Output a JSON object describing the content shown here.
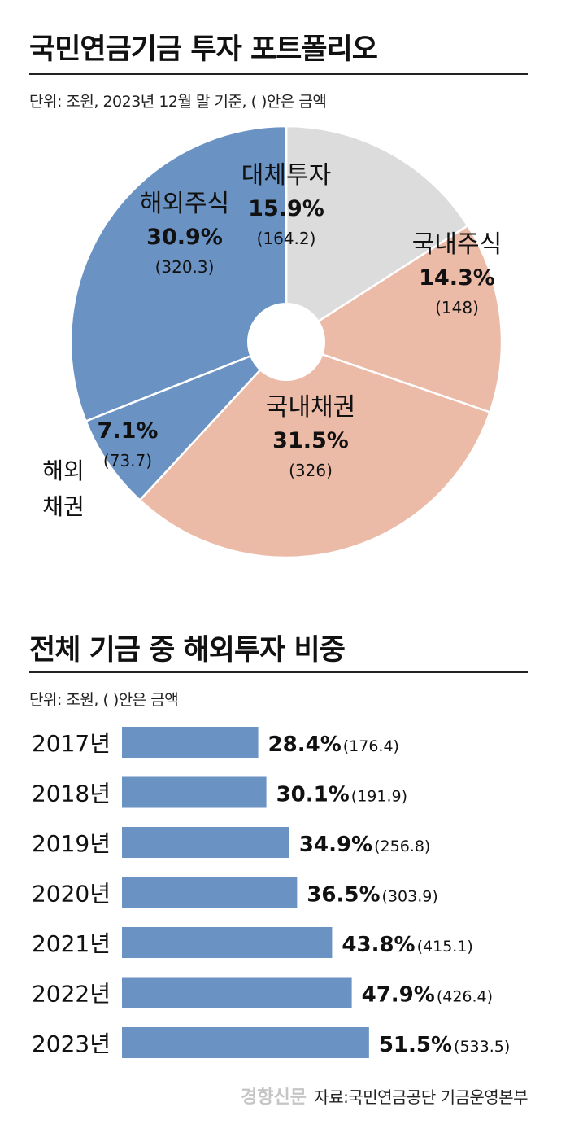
{
  "colors": {
    "foreign": "#6a93c3",
    "domestic": "#ecbba8",
    "alternative": "#dcdcdc",
    "bar": "#6a93c3",
    "text": "#111111",
    "hole": "#ffffff"
  },
  "pie_section": {
    "title": "국민연금기금 투자 포트폴리오",
    "subtitle": "단위: 조원,  2023년 12월 말 기준, ( )안은 금액"
  },
  "bar_section": {
    "title": "전체 기금 중 해외투자 비중",
    "subtitle": "단위: 조원, ( )안은 금액"
  },
  "source": "자료:국민연금공단 기금운영본부",
  "watermark": "경향신문",
  "chart_data": [
    {
      "type": "pie",
      "title": "국민연금기금 투자 포트폴리오",
      "unit": "조원",
      "slices": [
        {
          "name": "대체투자",
          "percent": 15.9,
          "percent_label": "15.9%",
          "amount": 164.2,
          "amount_label": "(164.2)",
          "color_key": "alternative"
        },
        {
          "name": "국내주식",
          "percent": 14.3,
          "percent_label": "14.3%",
          "amount": 148,
          "amount_label": "(148)",
          "color_key": "domestic"
        },
        {
          "name": "국내채권",
          "percent": 31.5,
          "percent_label": "31.5%",
          "amount": 326,
          "amount_label": "(326)",
          "color_key": "domestic"
        },
        {
          "name": "해외채권",
          "name_lines": [
            "해외",
            "채권"
          ],
          "percent": 7.1,
          "percent_label": "7.1%",
          "amount": 73.7,
          "amount_label": "(73.7)",
          "color_key": "foreign"
        },
        {
          "name": "해외주식",
          "percent": 30.9,
          "percent_label": "30.9%",
          "amount": 320.3,
          "amount_label": "(320.3)",
          "color_key": "foreign"
        }
      ]
    },
    {
      "type": "bar",
      "orientation": "horizontal",
      "title": "전체 기금 중 해외투자 비중",
      "unit": "조원",
      "categories": [
        "2017년",
        "2018년",
        "2019년",
        "2020년",
        "2021년",
        "2022년",
        "2023년"
      ],
      "values": [
        28.4,
        30.1,
        34.9,
        36.5,
        43.8,
        47.9,
        51.5
      ],
      "value_labels": [
        "28.4%",
        "30.1%",
        "34.9%",
        "36.5%",
        "43.8%",
        "47.9%",
        "51.5%"
      ],
      "amounts": [
        176.4,
        191.9,
        256.8,
        303.9,
        415.1,
        426.4,
        533.5
      ],
      "amount_labels": [
        "(176.4)",
        "(191.9)",
        "(256.8)",
        "(303.9)",
        "(415.1)",
        "(426.4)",
        "(533.5)"
      ],
      "xlim": [
        0,
        55
      ]
    }
  ]
}
